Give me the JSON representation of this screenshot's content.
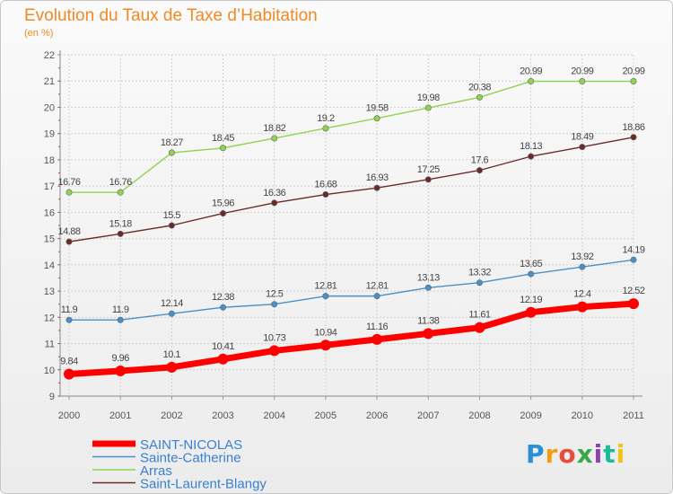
{
  "chart_data": {
    "type": "line",
    "title": "Evolution du Taux de Taxe d’Habitation",
    "subtitle": "(en %)",
    "x": [
      "2000",
      "2001",
      "2002",
      "2003",
      "2004",
      "2005",
      "2006",
      "2007",
      "2008",
      "2009",
      "2010",
      "2011"
    ],
    "ylim": [
      9,
      22
    ],
    "yticks": [
      9,
      10,
      11,
      12,
      13,
      14,
      15,
      16,
      17,
      18,
      19,
      20,
      21,
      22
    ],
    "grid": true,
    "legend_position": "bottom-left",
    "series": [
      {
        "name": "SAINT-NICOLAS",
        "color": "#ff0000",
        "emphasis": true,
        "values": [
          9.84,
          9.96,
          10.1,
          10.41,
          10.73,
          10.94,
          11.16,
          11.38,
          11.61,
          12.19,
          12.4,
          12.52
        ],
        "labels": [
          "9.84",
          "9.96",
          "10.1",
          "10.41",
          "10.73",
          "10.94",
          "11.16",
          "11.38",
          "11.61",
          "12.19",
          "12.4",
          "12.52"
        ]
      },
      {
        "name": "Sainte-Catherine",
        "color": "#4a90c8",
        "values": [
          11.9,
          11.9,
          12.14,
          12.38,
          12.5,
          12.81,
          12.81,
          13.13,
          13.32,
          13.65,
          13.92,
          14.19
        ],
        "labels": [
          "11.9",
          "11.9",
          "12.14",
          "12.38",
          "12.5",
          "12.81",
          "12.81",
          "13.13",
          "13.32",
          "13.65",
          "13.92",
          "14.19"
        ]
      },
      {
        "name": "Arras",
        "color": "#8fd44f",
        "values": [
          16.76,
          16.76,
          18.27,
          18.45,
          18.82,
          19.2,
          19.58,
          19.98,
          20.38,
          20.99,
          20.99,
          20.99
        ],
        "labels": [
          "16.76",
          "16.76",
          "18.27",
          "18.45",
          "18.82",
          "19.2",
          "19.58",
          "19.98",
          "20.38",
          "20.99",
          "20.99",
          "20.99"
        ]
      },
      {
        "name": "Saint-Laurent-Blangy",
        "color": "#6b2a2a",
        "values": [
          14.88,
          15.18,
          15.5,
          15.96,
          16.36,
          16.68,
          16.93,
          17.25,
          17.6,
          18.13,
          18.49,
          18.86
        ],
        "labels": [
          "14.88",
          "15.18",
          "15.5",
          "15.96",
          "16.36",
          "16.68",
          "16.93",
          "17.25",
          "17.6",
          "18.13",
          "18.49",
          "18.86"
        ]
      }
    ],
    "legend_text_color": "#3a7fd0",
    "title_color": "#f08a25"
  },
  "logo": {
    "letters": [
      "P",
      "r",
      "o",
      "x",
      "i",
      "t",
      "i"
    ]
  }
}
